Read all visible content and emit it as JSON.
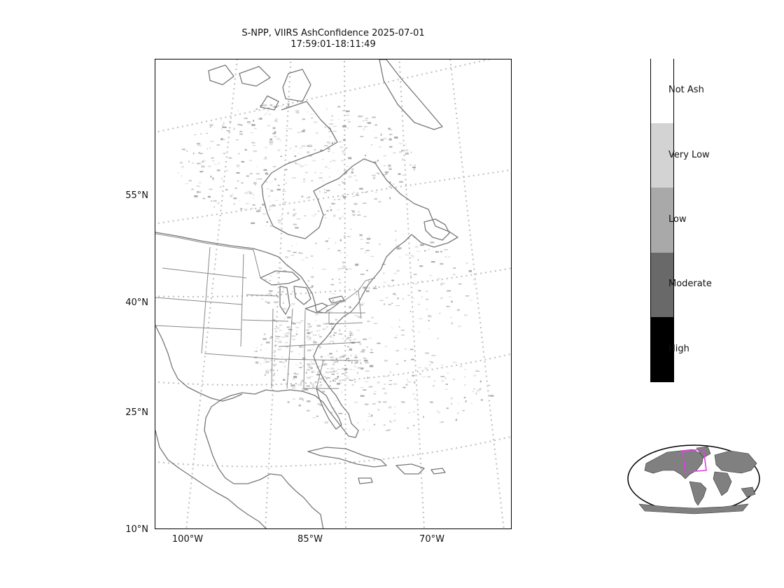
{
  "title": {
    "line1": "S-NPP, VIIRS AshConfidence 2025-07-01",
    "line2": "17:59:01-18:11:49"
  },
  "map": {
    "projection": "Lambert Conformal",
    "land_fill": "#ffffff",
    "coastline_color": "#777777",
    "graticule_color": "#bdbdbd",
    "graticule_style": "dotted",
    "lat_labels": [
      "55°N",
      "40°N",
      "25°N",
      "10°N"
    ],
    "lon_labels": [
      "100°W",
      "85°W",
      "70°W"
    ]
  },
  "colorbar": {
    "categories": [
      {
        "label": "Not Ash",
        "color": "#ffffff"
      },
      {
        "label": "Very Low",
        "color": "#d3d3d3"
      },
      {
        "label": "Low",
        "color": "#a9a9a9"
      },
      {
        "label": "Moderate",
        "color": "#696969"
      },
      {
        "label": "High",
        "color": "#000000"
      }
    ]
  },
  "inset": {
    "type": "world-locator",
    "land_color": "#808080",
    "extent_box_color": "#e040e0"
  }
}
